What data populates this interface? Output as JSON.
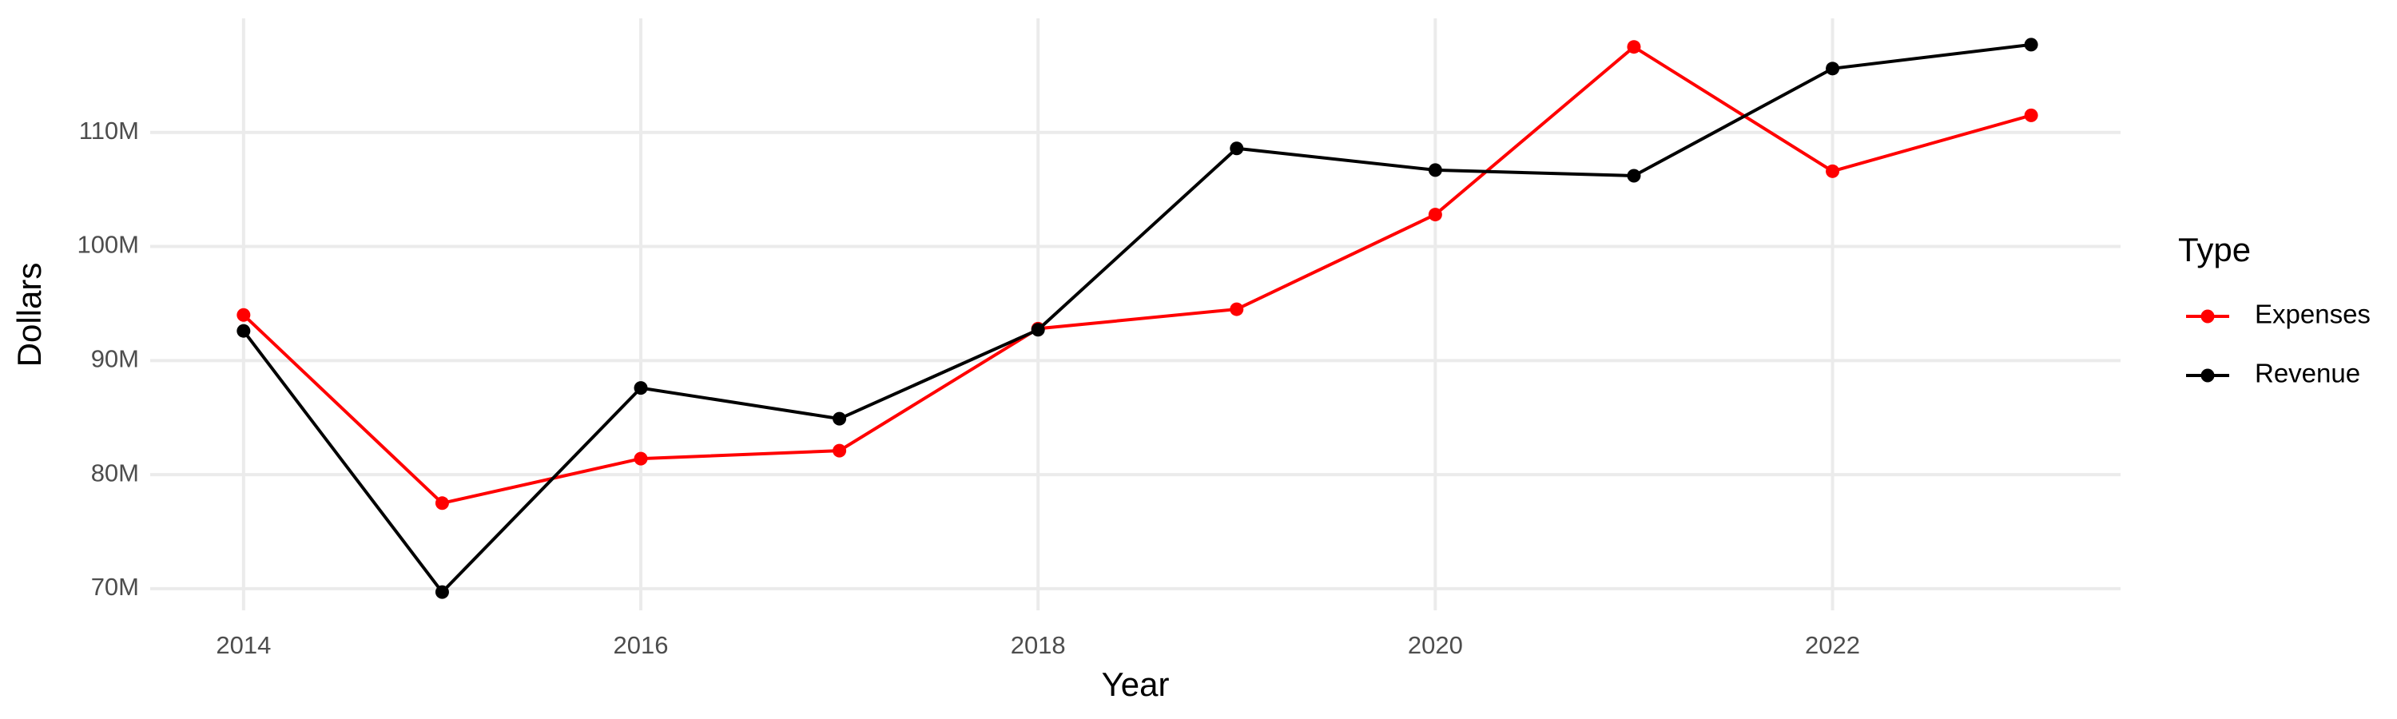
{
  "chart_data": {
    "type": "line",
    "xlabel": "Year",
    "ylabel": "Dollars",
    "legend_title": "Type",
    "x": [
      2014,
      2015,
      2016,
      2017,
      2018,
      2019,
      2020,
      2021,
      2022,
      2023
    ],
    "series": [
      {
        "name": "Expenses",
        "color": "#ff0000",
        "values": [
          94000000,
          77500000,
          81400000,
          82100000,
          92800000,
          94500000,
          102800000,
          117500000,
          106600000,
          111500000
        ]
      },
      {
        "name": "Revenue",
        "color": "#000000",
        "values": [
          92600000,
          69700000,
          87600000,
          84900000,
          92700000,
          108600000,
          106700000,
          106200000,
          115600000,
          117700000
        ]
      }
    ],
    "xlim": [
      2013.53,
      2023.45
    ],
    "xticks": [
      2014,
      2016,
      2018,
      2020,
      2022
    ],
    "ylim": [
      68100000,
      120000000
    ],
    "yticks": [
      {
        "value": 70000000,
        "label": "70M"
      },
      {
        "value": 80000000,
        "label": "80M"
      },
      {
        "value": 90000000,
        "label": "90M"
      },
      {
        "value": 100000000,
        "label": "100M"
      },
      {
        "value": 110000000,
        "label": "110M"
      }
    ],
    "grid": true,
    "legend": "right"
  }
}
